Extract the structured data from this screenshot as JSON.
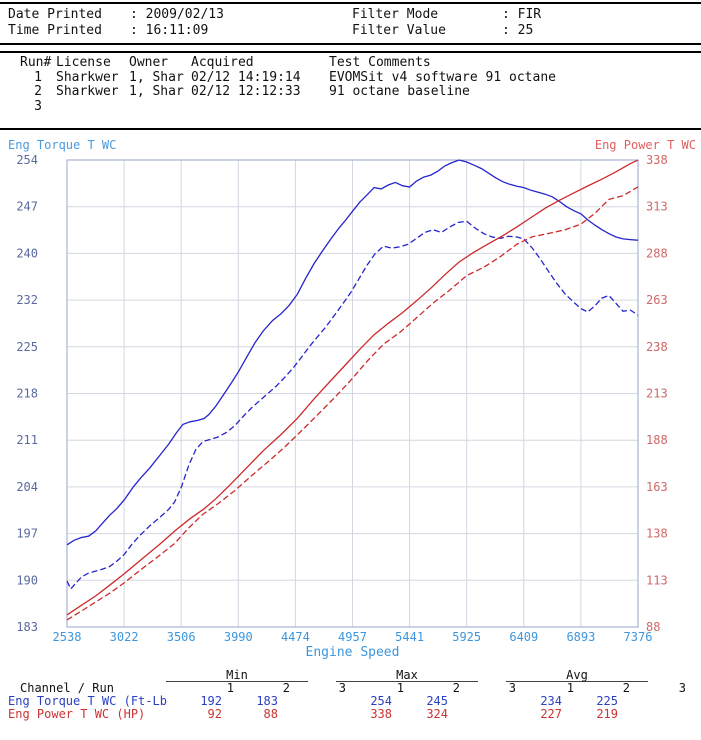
{
  "print_info": {
    "rows": [
      {
        "label": "Date Printed",
        "value": ": 2009/02/13",
        "label2": "Filter Mode",
        "value2": ": FIR"
      },
      {
        "label": "Time Printed",
        "value": ": 16:11:09",
        "label2": "Filter Value",
        "value2": ": 25"
      }
    ]
  },
  "runs": {
    "headers": [
      "Run#",
      "License",
      "Owner",
      "Acquired",
      "Test Comments"
    ],
    "rows": [
      {
        "run": "1",
        "license": "Sharkwer",
        "owner": "1, Shar",
        "acquired": "02/12 14:19:14",
        "comments": "EVOMSit v4 software 91 octane"
      },
      {
        "run": "2",
        "license": "Sharkwer",
        "owner": "1, Shar",
        "acquired": "02/12 12:12:33",
        "comments": "91 octane baseline"
      },
      {
        "run": "3",
        "license": "",
        "owner": "",
        "acquired": "",
        "comments": ""
      }
    ]
  },
  "chart_data": {
    "type": "line",
    "x_axis": {
      "label": "Engine Speed",
      "min": 2538,
      "max": 7376,
      "ticks": [
        2538,
        3022,
        3506,
        3990,
        4474,
        4957,
        5441,
        5925,
        6409,
        6893,
        7376
      ]
    },
    "left_axis": {
      "label": "Eng Torque T WC",
      "min": 183,
      "max": 254,
      "ticks": [
        254,
        247,
        240,
        232,
        225,
        218,
        211,
        204,
        197,
        190,
        183
      ]
    },
    "right_axis": {
      "label": "Eng Power T WC",
      "min": 88,
      "max": 338,
      "ticks": [
        338,
        313,
        288,
        263,
        238,
        213,
        188,
        163,
        138,
        113,
        88
      ]
    },
    "grid": true,
    "colors": {
      "grid": "#d6d6e2",
      "frame": "#9aa5cc",
      "left_ticks": "#5a6a9e",
      "right_ticks": "#d06868",
      "x_ticks": "#3d96dd",
      "torque": "#2525cc",
      "power": "#cc2a2a"
    },
    "series": [
      {
        "name": "Eng Torque T WC run 1",
        "axis": "left",
        "style": "solid",
        "color": "#2525cc",
        "points": [
          [
            2538,
            195.5
          ],
          [
            2600,
            196.2
          ],
          [
            2660,
            196.6
          ],
          [
            2720,
            196.8
          ],
          [
            2780,
            197.6
          ],
          [
            2840,
            198.8
          ],
          [
            2900,
            200
          ],
          [
            2960,
            201
          ],
          [
            3022,
            202.3
          ],
          [
            3100,
            204.3
          ],
          [
            3160,
            205.6
          ],
          [
            3240,
            207.2
          ],
          [
            3320,
            209
          ],
          [
            3400,
            210.8
          ],
          [
            3460,
            212.4
          ],
          [
            3520,
            213.8
          ],
          [
            3580,
            214.2
          ],
          [
            3640,
            214.4
          ],
          [
            3700,
            214.7
          ],
          [
            3740,
            215.3
          ],
          [
            3800,
            216.6
          ],
          [
            3860,
            218.2
          ],
          [
            3920,
            219.8
          ],
          [
            3990,
            221.8
          ],
          [
            4060,
            224
          ],
          [
            4130,
            226.2
          ],
          [
            4200,
            228
          ],
          [
            4280,
            229.6
          ],
          [
            4350,
            230.6
          ],
          [
            4420,
            231.9
          ],
          [
            4490,
            233.6
          ],
          [
            4560,
            236
          ],
          [
            4630,
            238.2
          ],
          [
            4700,
            240.1
          ],
          [
            4770,
            241.9
          ],
          [
            4840,
            243.6
          ],
          [
            4900,
            244.9
          ],
          [
            4957,
            246.2
          ],
          [
            5020,
            247.6
          ],
          [
            5080,
            248.7
          ],
          [
            5140,
            249.8
          ],
          [
            5200,
            249.6
          ],
          [
            5260,
            250.2
          ],
          [
            5320,
            250.6
          ],
          [
            5380,
            250.1
          ],
          [
            5441,
            249.9
          ],
          [
            5500,
            250.8
          ],
          [
            5560,
            251.4
          ],
          [
            5620,
            251.7
          ],
          [
            5680,
            252.3
          ],
          [
            5740,
            253.1
          ],
          [
            5800,
            253.6
          ],
          [
            5860,
            254
          ],
          [
            5925,
            253.7
          ],
          [
            5990,
            253.2
          ],
          [
            6050,
            252.7
          ],
          [
            6110,
            252
          ],
          [
            6170,
            251.3
          ],
          [
            6230,
            250.7
          ],
          [
            6290,
            250.3
          ],
          [
            6350,
            250
          ],
          [
            6409,
            249.8
          ],
          [
            6470,
            249.4
          ],
          [
            6530,
            249.1
          ],
          [
            6590,
            248.8
          ],
          [
            6650,
            248.4
          ],
          [
            6710,
            247.7
          ],
          [
            6770,
            246.9
          ],
          [
            6830,
            246.3
          ],
          [
            6893,
            245.8
          ],
          [
            6950,
            244.9
          ],
          [
            7010,
            244.1
          ],
          [
            7070,
            243.4
          ],
          [
            7130,
            242.8
          ],
          [
            7190,
            242.3
          ],
          [
            7250,
            242
          ],
          [
            7310,
            241.9
          ],
          [
            7376,
            241.8
          ]
        ]
      },
      {
        "name": "Eng Torque T WC run 2",
        "axis": "left",
        "style": "dashed",
        "color": "#2525cc",
        "points": [
          [
            2538,
            190
          ],
          [
            2570,
            188.8
          ],
          [
            2610,
            189.6
          ],
          [
            2660,
            190.6
          ],
          [
            2720,
            191.2
          ],
          [
            2780,
            191.5
          ],
          [
            2840,
            191.8
          ],
          [
            2900,
            192.2
          ],
          [
            2960,
            193
          ],
          [
            3022,
            194
          ],
          [
            3090,
            195.6
          ],
          [
            3160,
            197
          ],
          [
            3240,
            198.4
          ],
          [
            3320,
            199.6
          ],
          [
            3400,
            200.9
          ],
          [
            3450,
            202
          ],
          [
            3510,
            204.4
          ],
          [
            3570,
            207.6
          ],
          [
            3630,
            210
          ],
          [
            3690,
            211.2
          ],
          [
            3750,
            211.5
          ],
          [
            3820,
            211.9
          ],
          [
            3890,
            212.6
          ],
          [
            3960,
            213.6
          ],
          [
            4030,
            215
          ],
          [
            4100,
            216.3
          ],
          [
            4170,
            217.4
          ],
          [
            4240,
            218.5
          ],
          [
            4310,
            219.6
          ],
          [
            4380,
            220.9
          ],
          [
            4450,
            222.3
          ],
          [
            4520,
            223.9
          ],
          [
            4590,
            225.6
          ],
          [
            4660,
            227.1
          ],
          [
            4730,
            228.6
          ],
          [
            4800,
            230.3
          ],
          [
            4870,
            232
          ],
          [
            4940,
            233.8
          ],
          [
            5010,
            235.9
          ],
          [
            5080,
            238
          ],
          [
            5150,
            239.8
          ],
          [
            5220,
            240.9
          ],
          [
            5290,
            240.6
          ],
          [
            5360,
            240.8
          ],
          [
            5430,
            241.2
          ],
          [
            5500,
            242.1
          ],
          [
            5570,
            243
          ],
          [
            5640,
            243.4
          ],
          [
            5710,
            243
          ],
          [
            5780,
            243.8
          ],
          [
            5850,
            244.5
          ],
          [
            5925,
            244.7
          ],
          [
            6000,
            243.6
          ],
          [
            6070,
            242.8
          ],
          [
            6140,
            242.3
          ],
          [
            6210,
            242.1
          ],
          [
            6280,
            242.4
          ],
          [
            6350,
            242.3
          ],
          [
            6409,
            242
          ],
          [
            6480,
            240.6
          ],
          [
            6550,
            238.9
          ],
          [
            6620,
            237
          ],
          [
            6690,
            235.2
          ],
          [
            6760,
            233.6
          ],
          [
            6830,
            232.4
          ],
          [
            6893,
            231.4
          ],
          [
            6950,
            230.9
          ],
          [
            7010,
            231.8
          ],
          [
            7070,
            233
          ],
          [
            7130,
            233.4
          ],
          [
            7190,
            232.2
          ],
          [
            7250,
            231
          ],
          [
            7310,
            231.2
          ],
          [
            7376,
            230.4
          ]
        ]
      },
      {
        "name": "Eng Power T WC run 1",
        "axis": "right",
        "style": "solid",
        "color": "#cc2a2a",
        "points": [
          [
            2538,
            94.5
          ],
          [
            2660,
            99.6
          ],
          [
            2780,
            104.6
          ],
          [
            2900,
            110.4
          ],
          [
            3022,
            116.4
          ],
          [
            3160,
            123.7
          ],
          [
            3320,
            132.1
          ],
          [
            3460,
            139.9
          ],
          [
            3580,
            146
          ],
          [
            3700,
            151.3
          ],
          [
            3800,
            156.7
          ],
          [
            3920,
            164.1
          ],
          [
            4060,
            173.2
          ],
          [
            4200,
            182.3
          ],
          [
            4350,
            191
          ],
          [
            4490,
            199.7
          ],
          [
            4630,
            210
          ],
          [
            4770,
            219.7
          ],
          [
            4900,
            228.5
          ],
          [
            5020,
            236.7
          ],
          [
            5140,
            244.5
          ],
          [
            5260,
            250.6
          ],
          [
            5380,
            256.2
          ],
          [
            5500,
            262.6
          ],
          [
            5620,
            269.3
          ],
          [
            5740,
            276.6
          ],
          [
            5860,
            283.4
          ],
          [
            5990,
            288.8
          ],
          [
            6110,
            293.2
          ],
          [
            6230,
            297.4
          ],
          [
            6350,
            302.2
          ],
          [
            6470,
            307.2
          ],
          [
            6590,
            312.2
          ],
          [
            6710,
            316.4
          ],
          [
            6830,
            320.3
          ],
          [
            6950,
            324.1
          ],
          [
            7070,
            327.7
          ],
          [
            7190,
            331.7
          ],
          [
            7310,
            336
          ],
          [
            7376,
            338
          ]
        ]
      },
      {
        "name": "Eng Power T WC run 2",
        "axis": "right",
        "style": "dashed",
        "color": "#cc2a2a",
        "points": [
          [
            2538,
            91.8
          ],
          [
            2660,
            96.5
          ],
          [
            2780,
            101.4
          ],
          [
            2900,
            106.1
          ],
          [
            3022,
            111.6
          ],
          [
            3160,
            118.5
          ],
          [
            3320,
            126.2
          ],
          [
            3450,
            132.7
          ],
          [
            3570,
            141.1
          ],
          [
            3690,
            148.4
          ],
          [
            3820,
            154.1
          ],
          [
            3960,
            161
          ],
          [
            4100,
            168.9
          ],
          [
            4240,
            176.4
          ],
          [
            4380,
            184.2
          ],
          [
            4520,
            192.7
          ],
          [
            4660,
            201.5
          ],
          [
            4800,
            210.5
          ],
          [
            4940,
            219.9
          ],
          [
            5080,
            230.2
          ],
          [
            5220,
            239.4
          ],
          [
            5360,
            245.8
          ],
          [
            5500,
            253.5
          ],
          [
            5640,
            261.4
          ],
          [
            5780,
            268.3
          ],
          [
            5925,
            276.1
          ],
          [
            6070,
            280.6
          ],
          [
            6210,
            286.3
          ],
          [
            6350,
            292.9
          ],
          [
            6480,
            296.9
          ],
          [
            6620,
            298.7
          ],
          [
            6760,
            300.7
          ],
          [
            6893,
            303.7
          ],
          [
            7010,
            309.4
          ],
          [
            7130,
            316.9
          ],
          [
            7250,
            318.9
          ],
          [
            7376,
            323.6
          ]
        ]
      }
    ]
  },
  "summary": {
    "channel_header": "Channel / Run",
    "groups": [
      {
        "label": "Min",
        "cols": [
          "1",
          "2",
          "3"
        ]
      },
      {
        "label": "Max",
        "cols": [
          "1",
          "2",
          "3"
        ]
      },
      {
        "label": "Avg",
        "cols": [
          "1",
          "2",
          "3"
        ]
      }
    ],
    "rows": [
      {
        "label": "Eng Torque T WC (Ft-Lb",
        "min": [
          "192",
          "183",
          ""
        ],
        "max": [
          "254",
          "245",
          ""
        ],
        "avg": [
          "234",
          "225",
          ""
        ]
      },
      {
        "label": "Eng Power T WC (HP)",
        "min": [
          "92",
          "88",
          ""
        ],
        "max": [
          "338",
          "324",
          ""
        ],
        "avg": [
          "227",
          "219",
          ""
        ]
      }
    ]
  }
}
